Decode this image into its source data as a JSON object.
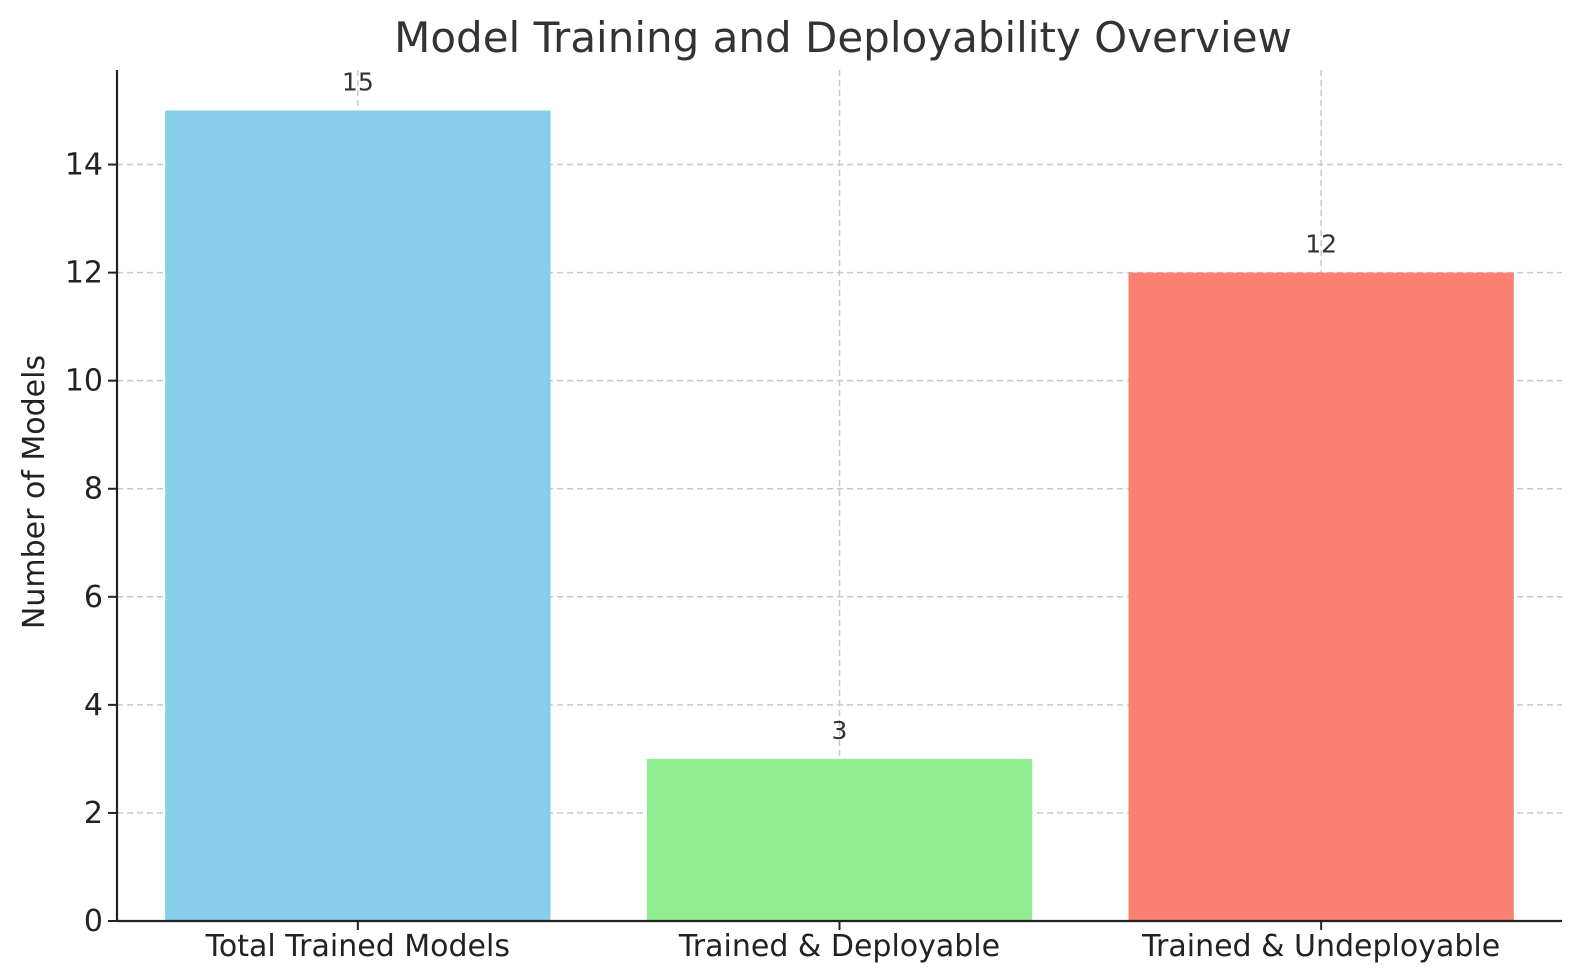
{
  "chart_data": {
    "type": "bar",
    "title": "Model Training and Deployability Overview",
    "xlabel": "",
    "ylabel": "Number of Models",
    "categories": [
      "Total Trained Models",
      "Trained & Deployable",
      "Trained & Undeployable"
    ],
    "values": [
      15,
      3,
      12
    ],
    "data_labels": [
      "15",
      "3",
      "12"
    ],
    "colors": [
      "#87CEEB",
      "#90EE90",
      "#FA8072"
    ],
    "ylim": [
      0,
      15.75
    ],
    "yticks": [
      0,
      2,
      4,
      6,
      8,
      10,
      12,
      14
    ],
    "grid": true,
    "legend": "none"
  }
}
